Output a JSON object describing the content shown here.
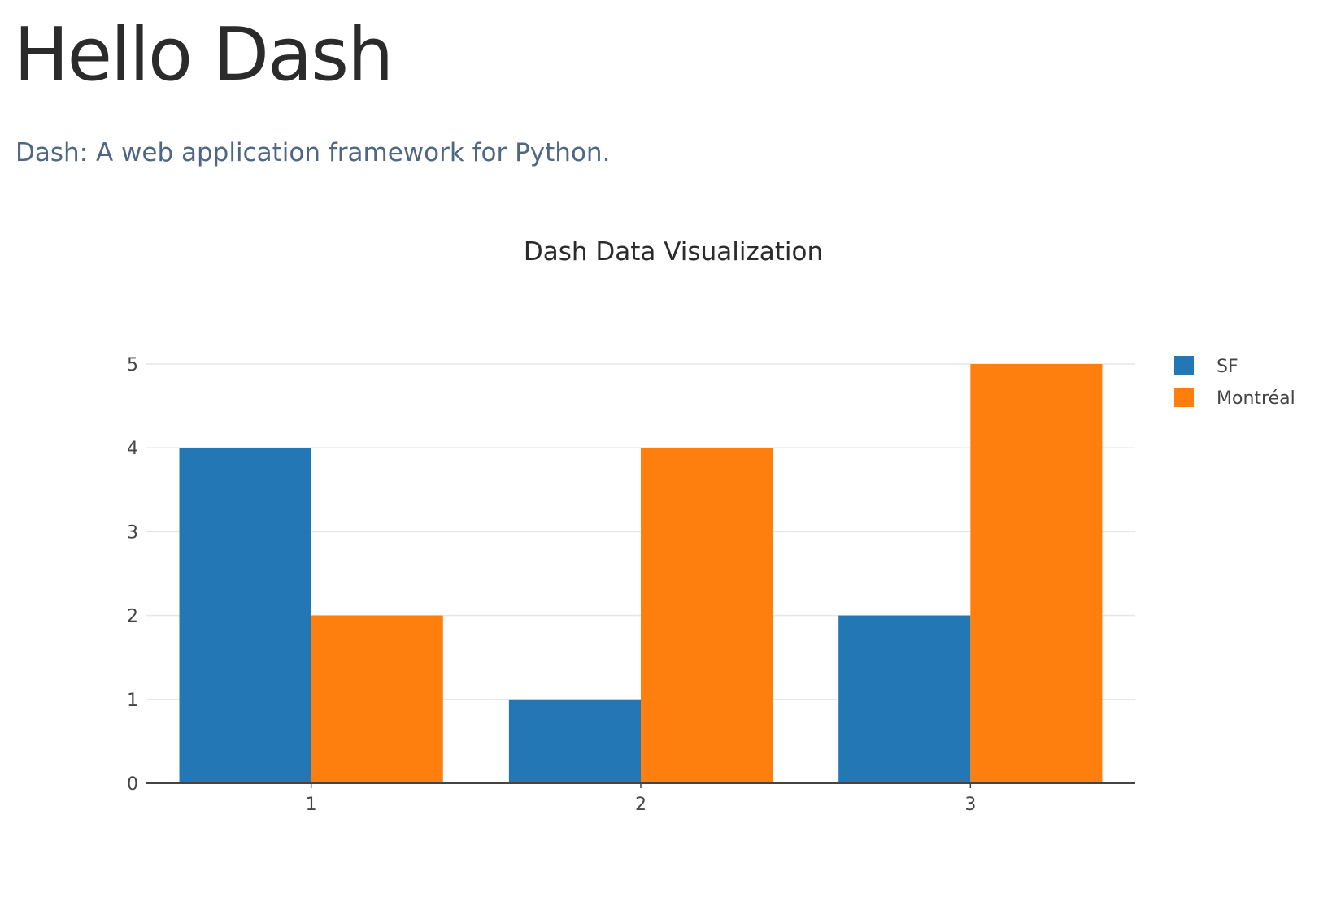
{
  "page": {
    "title": "Hello Dash",
    "subtitle": "Dash: A web application framework for Python."
  },
  "colors": {
    "title": "#2b2b2b",
    "subtitle": "#506784",
    "series_sf": "#2277b4",
    "series_montreal": "#ff7f0e",
    "grid": "#e6e6e6",
    "axis": "#444444",
    "text": "#444444"
  },
  "chart_data": {
    "type": "bar",
    "title": "Dash Data Visualization",
    "categories": [
      "1",
      "2",
      "3"
    ],
    "series": [
      {
        "name": "SF",
        "values": [
          4,
          1,
          2
        ],
        "color": "#2277b4"
      },
      {
        "name": "Montréal",
        "values": [
          2,
          4,
          5
        ],
        "color": "#ff7f0e"
      }
    ],
    "ylim": [
      0,
      5
    ],
    "yticks": [
      "0",
      "1",
      "2",
      "3",
      "4",
      "5"
    ],
    "grid": true,
    "legend": "top-right",
    "xlabel": "",
    "ylabel": ""
  }
}
